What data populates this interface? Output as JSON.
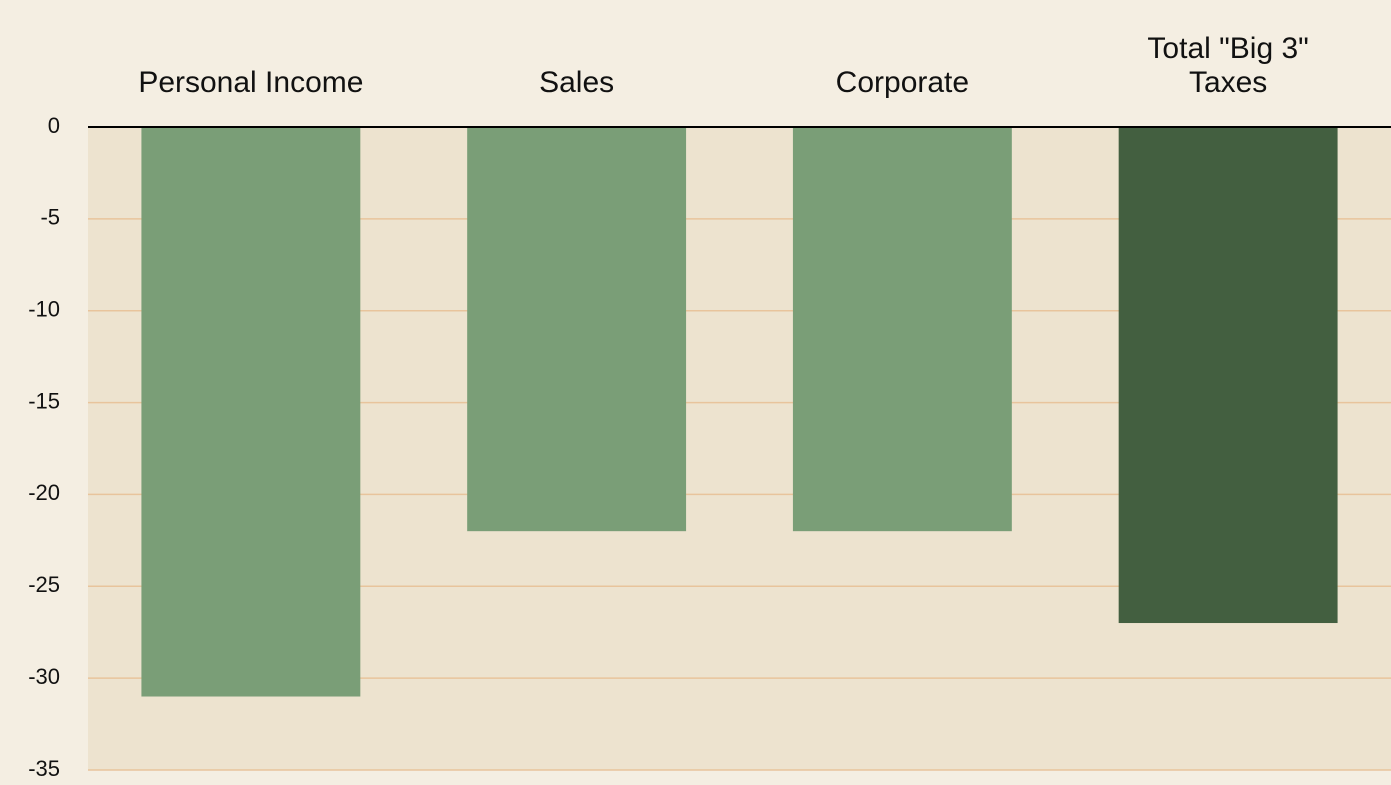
{
  "chart_data": {
    "type": "bar",
    "categories": [
      "Personal Income",
      "Sales",
      "Corporate",
      "Total \"Big 3\" Taxes"
    ],
    "values": [
      -31,
      -22,
      -22,
      -27
    ],
    "colors": [
      "#7a9e77",
      "#7a9e77",
      "#7a9e77",
      "#435f40"
    ],
    "ylim": [
      -35,
      0
    ],
    "yticks": [
      0,
      -5,
      -10,
      -15,
      -20,
      -25,
      -30,
      -35
    ],
    "grid": true
  }
}
